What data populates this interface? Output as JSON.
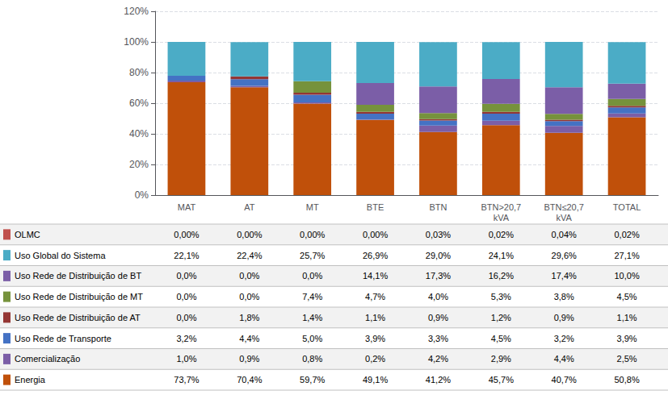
{
  "chart_data": {
    "type": "bar",
    "stacked": true,
    "categories": [
      "MAT",
      "AT",
      "MT",
      "BTE",
      "BTN",
      "BTN>20,7\nkVA",
      "BTN≤20,7\nkVA",
      "TOTAL"
    ],
    "series": [
      {
        "name": "Energia",
        "color": "#C0500A",
        "values": [
          73.7,
          70.4,
          59.7,
          49.1,
          41.2,
          45.7,
          40.7,
          50.8
        ],
        "value_labels": [
          "73,7%",
          "70,4%",
          "59,7%",
          "49,1%",
          "41,2%",
          "45,7%",
          "40,7%",
          "50,8%"
        ]
      },
      {
        "name": "Comercialização",
        "color": "#7B5EA7",
        "values": [
          1.0,
          0.9,
          0.8,
          0.2,
          4.2,
          2.9,
          4.4,
          2.5
        ],
        "value_labels": [
          "1,0%",
          "0,9%",
          "0,8%",
          "0,2%",
          "4,2%",
          "2,9%",
          "4,4%",
          "2,5%"
        ]
      },
      {
        "name": "Uso Rede de Transporte",
        "color": "#4472C4",
        "values": [
          3.2,
          4.4,
          5.0,
          3.9,
          3.3,
          4.5,
          3.2,
          3.9
        ],
        "value_labels": [
          "3,2%",
          "4,4%",
          "5,0%",
          "3,9%",
          "3,3%",
          "4,5%",
          "3,2%",
          "3,9%"
        ]
      },
      {
        "name": "Uso Rede de Distribuição de AT",
        "color": "#943634",
        "values": [
          0.0,
          1.8,
          1.4,
          1.1,
          0.9,
          1.2,
          0.9,
          1.1
        ],
        "value_labels": [
          "0,0%",
          "1,8%",
          "1,4%",
          "1,1%",
          "0,9%",
          "1,2%",
          "0,9%",
          "1,1%"
        ]
      },
      {
        "name": "Uso Rede de Distribuição de MT",
        "color": "#76923C",
        "values": [
          0.0,
          0.0,
          7.4,
          4.7,
          4.0,
          5.3,
          3.8,
          4.5
        ],
        "value_labels": [
          "0,0%",
          "0,0%",
          "7,4%",
          "4,7%",
          "4,0%",
          "5,3%",
          "3,8%",
          "4,5%"
        ]
      },
      {
        "name": "Uso Rede de Distribuição de BT",
        "color": "#7B5EA7",
        "values": [
          0.0,
          0.0,
          0.0,
          14.1,
          17.3,
          16.2,
          17.4,
          10.0
        ],
        "value_labels": [
          "0,0%",
          "0,0%",
          "0,0%",
          "14,1%",
          "17,3%",
          "16,2%",
          "17,4%",
          "10,0%"
        ]
      },
      {
        "name": "Uso Global do Sistema",
        "color": "#4BACC6",
        "values": [
          22.1,
          22.4,
          25.7,
          26.9,
          29.0,
          24.1,
          29.6,
          27.1
        ],
        "value_labels": [
          "22,1%",
          "22,4%",
          "25,7%",
          "26,9%",
          "29,0%",
          "24,1%",
          "29,6%",
          "27,1%"
        ]
      },
      {
        "name": "OLMC",
        "color": "#C0504D",
        "values": [
          0.0,
          0.0,
          0.0,
          0.0,
          0.03,
          0.02,
          0.04,
          0.02
        ],
        "value_labels": [
          "0,00%",
          "0,00%",
          "0,00%",
          "0,00%",
          "0,03%",
          "0,02%",
          "0,04%",
          "0,02%"
        ]
      }
    ],
    "ylim": [
      0,
      120
    ],
    "yticks": [
      {
        "value": 0,
        "label": "0%"
      },
      {
        "value": 20,
        "label": "20%"
      },
      {
        "value": 40,
        "label": "40%"
      },
      {
        "value": 60,
        "label": "60%"
      },
      {
        "value": 80,
        "label": "80%"
      },
      {
        "value": 100,
        "label": "100%"
      },
      {
        "value": 120,
        "label": "120%"
      }
    ],
    "grid": true
  }
}
